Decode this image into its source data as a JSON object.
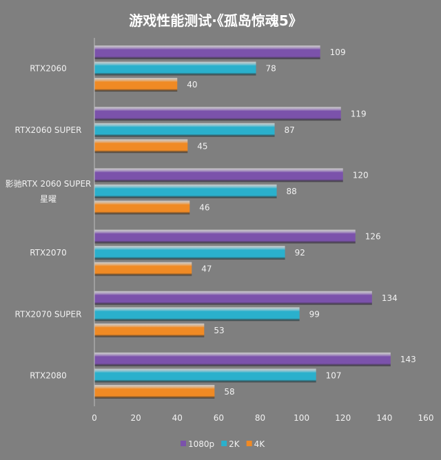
{
  "chart_data": {
    "type": "bar",
    "orientation": "horizontal",
    "title": "游戏性能测试·《孤岛惊魂5》",
    "categories": [
      "RTX2060",
      "RTX2060 SUPER",
      "影驰RTX 2060 SUPER 星曜",
      "RTX2070",
      "RTX2070 SUPER",
      "RTX2080"
    ],
    "category_lines": [
      [
        "RTX2060"
      ],
      [
        "RTX2060 SUPER"
      ],
      [
        "影驰RTX 2060 SUPER",
        "星曜"
      ],
      [
        "RTX2070"
      ],
      [
        "RTX2070 SUPER"
      ],
      [
        "RTX2080"
      ]
    ],
    "series": [
      {
        "name": "1080p",
        "color": "#7b52ab",
        "values": [
          109,
          119,
          120,
          126,
          134,
          143
        ]
      },
      {
        "name": "2K",
        "color": "#2ab0cc",
        "values": [
          78,
          87,
          88,
          92,
          99,
          107
        ]
      },
      {
        "name": "4K",
        "color": "#f08a24",
        "values": [
          40,
          45,
          46,
          47,
          53,
          58
        ]
      }
    ],
    "xlim": [
      0,
      160
    ],
    "xticks": [
      0,
      20,
      40,
      60,
      80,
      100,
      120,
      140,
      160
    ],
    "grid": false,
    "legend": "bottom",
    "data_labels": true
  }
}
